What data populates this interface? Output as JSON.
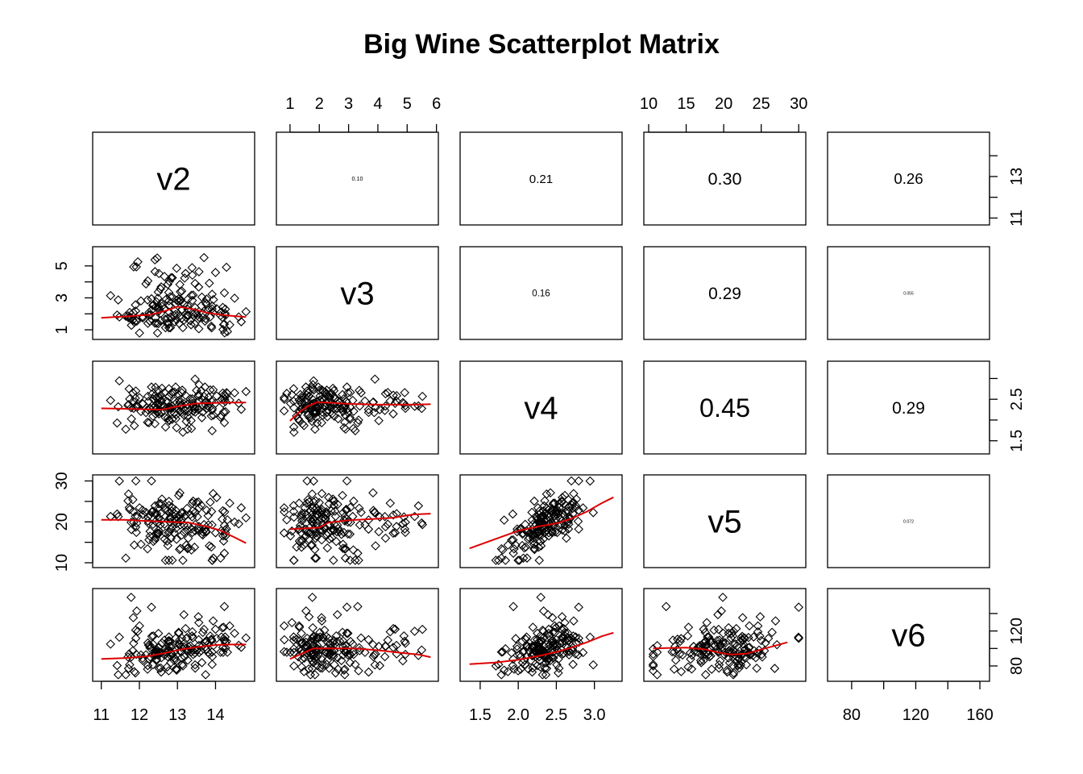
{
  "chart_data": {
    "type": "scatter",
    "title": "Big Wine  Scatterplot Matrix",
    "variables": [
      "v2",
      "v3",
      "v4",
      "v5",
      "v6"
    ],
    "layout": "pairs: scatter with lowess smoother below diagonal, variable names on diagonal, correlation coefficients above diagonal",
    "ranges": {
      "v2": [
        10.9,
        14.9
      ],
      "v3": [
        0.7,
        5.9
      ],
      "v4": [
        1.3,
        3.3
      ],
      "v5": [
        10,
        30.3
      ],
      "v6": [
        68,
        163
      ]
    },
    "axes": {
      "bottom": {
        "v2": [
          11,
          12,
          13,
          14
        ],
        "v4": [
          1.5,
          2.0,
          2.5,
          3.0
        ],
        "v6": [
          80,
          120,
          160
        ]
      },
      "top": {
        "v3": [
          1,
          2,
          3,
          4,
          5,
          6
        ],
        "v5": [
          10,
          15,
          20,
          25,
          30
        ]
      },
      "left": {
        "v3": [
          1,
          3,
          5
        ],
        "v5": [
          10,
          20,
          30
        ]
      },
      "right": {
        "v2": [
          11,
          13
        ],
        "v4": [
          1.5,
          2.5
        ],
        "v6": [
          80,
          120
        ]
      }
    },
    "tick_labels": {
      "bottom": {
        "v2": [
          "11",
          "12",
          "13",
          "14"
        ],
        "v4": [
          "1.5",
          "2.0",
          "2.5",
          "3.0"
        ],
        "v6": [
          "80",
          "120",
          "160"
        ]
      },
      "top": {
        "v3": [
          "1",
          "2",
          "3",
          "4",
          "5",
          "6"
        ],
        "v5": [
          "10",
          "15",
          "20",
          "25",
          "30"
        ]
      },
      "left": {
        "v3": [
          "1",
          "3",
          "5"
        ],
        "v5": [
          "10",
          "20",
          "30"
        ]
      },
      "right": {
        "v2": [
          "11",
          "13"
        ],
        "v4": [
          "1.5",
          "2.5"
        ],
        "v6": [
          "80",
          "120"
        ]
      }
    },
    "correlations": [
      {
        "row": "v2",
        "col": "v3",
        "label": "0.10",
        "value": 0.1
      },
      {
        "row": "v2",
        "col": "v4",
        "label": "0.21",
        "value": 0.21
      },
      {
        "row": "v2",
        "col": "v5",
        "label": "0.30",
        "value": 0.3
      },
      {
        "row": "v2",
        "col": "v6",
        "label": "0.26",
        "value": 0.26
      },
      {
        "row": "v3",
        "col": "v4",
        "label": "0.16",
        "value": 0.16
      },
      {
        "row": "v3",
        "col": "v5",
        "label": "0.29",
        "value": 0.29
      },
      {
        "row": "v3",
        "col": "v6",
        "label": "0.055",
        "value": 0.055
      },
      {
        "row": "v4",
        "col": "v5",
        "label": "0.45",
        "value": 0.45
      },
      {
        "row": "v4",
        "col": "v6",
        "label": "0.29",
        "value": 0.29
      },
      {
        "row": "v5",
        "col": "v6",
        "label": "0.072",
        "value": 0.072
      }
    ],
    "point_marker": "open diamond",
    "smoother_color": "#dd0000",
    "smoothers": [
      {
        "x": "v2",
        "y": "v3",
        "points": [
          [
            11.0,
            1.75
          ],
          [
            11.7,
            1.85
          ],
          [
            12.3,
            1.95
          ],
          [
            12.7,
            2.2
          ],
          [
            13.0,
            2.45
          ],
          [
            13.4,
            2.3
          ],
          [
            13.8,
            2.05
          ],
          [
            14.3,
            1.9
          ],
          [
            14.8,
            1.8
          ]
        ]
      },
      {
        "x": "v2",
        "y": "v4",
        "points": [
          [
            11.0,
            2.28
          ],
          [
            11.6,
            2.27
          ],
          [
            12.1,
            2.26
          ],
          [
            12.6,
            2.25
          ],
          [
            13.0,
            2.33
          ],
          [
            13.5,
            2.4
          ],
          [
            14.0,
            2.41
          ],
          [
            14.4,
            2.42
          ],
          [
            14.8,
            2.42
          ]
        ]
      },
      {
        "x": "v3",
        "y": "v4",
        "points": [
          [
            1.0,
            1.98
          ],
          [
            1.3,
            2.18
          ],
          [
            1.6,
            2.33
          ],
          [
            1.9,
            2.42
          ],
          [
            2.3,
            2.42
          ],
          [
            3.0,
            2.39
          ],
          [
            4.0,
            2.37
          ],
          [
            5.0,
            2.37
          ],
          [
            5.8,
            2.38
          ]
        ]
      },
      {
        "x": "v2",
        "y": "v5",
        "points": [
          [
            11.0,
            20.5
          ],
          [
            11.6,
            20.5
          ],
          [
            12.2,
            20.2
          ],
          [
            12.8,
            20.0
          ],
          [
            13.3,
            19.8
          ],
          [
            13.7,
            19.0
          ],
          [
            14.1,
            18.0
          ],
          [
            14.5,
            16.2
          ],
          [
            14.8,
            14.8
          ]
        ]
      },
      {
        "x": "v3",
        "y": "v5",
        "points": [
          [
            1.0,
            18.2
          ],
          [
            1.5,
            18.4
          ],
          [
            2.0,
            18.6
          ],
          [
            2.3,
            19.8
          ],
          [
            3.0,
            20.4
          ],
          [
            3.8,
            20.7
          ],
          [
            4.5,
            21.0
          ],
          [
            5.2,
            21.8
          ],
          [
            5.8,
            22.0
          ]
        ]
      },
      {
        "x": "v4",
        "y": "v5",
        "points": [
          [
            1.36,
            13.5
          ],
          [
            1.7,
            15.8
          ],
          [
            2.0,
            17.8
          ],
          [
            2.3,
            19.0
          ],
          [
            2.5,
            19.6
          ],
          [
            2.7,
            20.8
          ],
          [
            2.9,
            22.5
          ],
          [
            3.1,
            24.6
          ],
          [
            3.25,
            26.0
          ]
        ]
      },
      {
        "x": "v2",
        "y": "v6",
        "points": [
          [
            11.0,
            88
          ],
          [
            11.6,
            89
          ],
          [
            12.2,
            91
          ],
          [
            12.7,
            95
          ],
          [
            13.1,
            99
          ],
          [
            13.6,
            102
          ],
          [
            14.0,
            104
          ],
          [
            14.4,
            104.5
          ],
          [
            14.8,
            104.5
          ]
        ]
      },
      {
        "x": "v3",
        "y": "v6",
        "points": [
          [
            1.0,
            88
          ],
          [
            1.4,
            94
          ],
          [
            1.8,
            100
          ],
          [
            2.5,
            100
          ],
          [
            3.2,
            100
          ],
          [
            4.0,
            98
          ],
          [
            4.8,
            95
          ],
          [
            5.4,
            93
          ],
          [
            5.8,
            90
          ]
        ]
      },
      {
        "x": "v4",
        "y": "v6",
        "points": [
          [
            1.36,
            82
          ],
          [
            1.7,
            84
          ],
          [
            2.0,
            87
          ],
          [
            2.3,
            92
          ],
          [
            2.5,
            96
          ],
          [
            2.7,
            101
          ],
          [
            2.9,
            107
          ],
          [
            3.1,
            114
          ],
          [
            3.25,
            118
          ]
        ]
      },
      {
        "x": "v5",
        "y": "v6",
        "points": [
          [
            10.6,
            100
          ],
          [
            12.5,
            100.5
          ],
          [
            15.0,
            101
          ],
          [
            17.5,
            99
          ],
          [
            19.5,
            95
          ],
          [
            21.0,
            93
          ],
          [
            23.0,
            94
          ],
          [
            25.5,
            100
          ],
          [
            28.5,
            107
          ]
        ]
      }
    ]
  }
}
